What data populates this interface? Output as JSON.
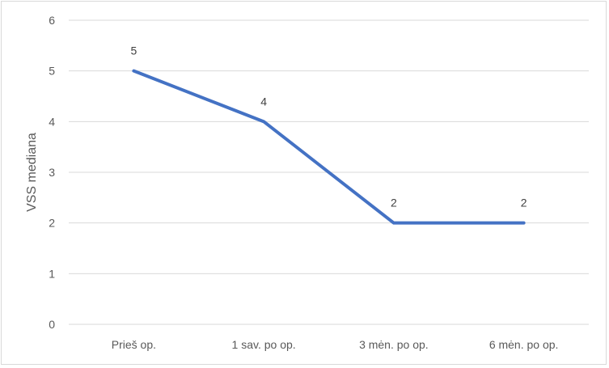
{
  "chart_data": {
    "type": "line",
    "title": "",
    "xlabel": "",
    "ylabel": "VSS mediana",
    "categories": [
      "Prieš op.",
      "1 sav. po op.",
      "3 mėn. po op.",
      "6 mėn. po op."
    ],
    "series": [
      {
        "name": "VSS mediana",
        "values": [
          5,
          4,
          2,
          2
        ],
        "color": "#4472c4",
        "data_labels": [
          "5",
          "4",
          "2",
          "2"
        ]
      }
    ],
    "ylim": [
      0,
      6
    ],
    "yticks": [
      "0",
      "1",
      "2",
      "3",
      "4",
      "5",
      "6"
    ],
    "grid": true,
    "legend": "none"
  }
}
